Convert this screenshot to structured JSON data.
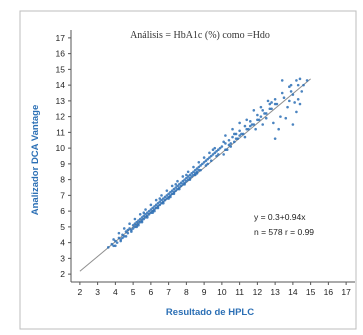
{
  "chart_data": {
    "type": "scatter",
    "title": "Análisis = HbA1c (%) como =Hdo",
    "xlabel": "Resultado de HPLC",
    "ylabel": "Analizador DCA Vantage",
    "xlim": [
      1.5,
      17.5
    ],
    "ylim": [
      1.5,
      17.5
    ],
    "x_ticks": [
      "2",
      "3",
      "4",
      "5",
      "6",
      "7",
      "8",
      "9",
      "10",
      "11",
      "12",
      "13",
      "14",
      "15",
      "16",
      "17"
    ],
    "y_ticks": [
      "2",
      "3",
      "4",
      "5",
      "6",
      "7",
      "8",
      "9",
      "10",
      "11",
      "12",
      "13",
      "14",
      "15",
      "16",
      "17"
    ],
    "grid": false,
    "point_color": "#2b6fb5",
    "regression": {
      "intercept": 0.3,
      "slope": 0.94,
      "x_range": [
        2,
        15
      ],
      "color": "#8f8f8f"
    },
    "annotation": {
      "equation": "y = 0.3+0.94x",
      "stats": "n = 578  r = 0.99"
    },
    "series": [
      {
        "points": [
          [
            3.6,
            3.7
          ],
          [
            3.8,
            3.9
          ],
          [
            3.9,
            3.8
          ],
          [
            4.0,
            4.1
          ],
          [
            4.1,
            4.0
          ],
          [
            4.2,
            4.3
          ],
          [
            4.3,
            4.2
          ],
          [
            4.4,
            4.5
          ],
          [
            4.5,
            4.4
          ],
          [
            4.6,
            4.7
          ],
          [
            4.7,
            4.6
          ],
          [
            4.8,
            4.9
          ],
          [
            4.9,
            4.8
          ],
          [
            5.0,
            5.1
          ],
          [
            5.0,
            4.9
          ],
          [
            5.1,
            5.2
          ],
          [
            5.1,
            5.0
          ],
          [
            5.2,
            5.3
          ],
          [
            5.2,
            5.1
          ],
          [
            5.3,
            5.4
          ],
          [
            5.3,
            5.2
          ],
          [
            5.4,
            5.5
          ],
          [
            5.4,
            5.3
          ],
          [
            5.5,
            5.6
          ],
          [
            5.5,
            5.4
          ],
          [
            5.6,
            5.7
          ],
          [
            5.6,
            5.5
          ],
          [
            5.7,
            5.8
          ],
          [
            5.7,
            5.6
          ],
          [
            5.8,
            5.9
          ],
          [
            5.8,
            5.7
          ],
          [
            5.9,
            6.0
          ],
          [
            5.9,
            5.8
          ],
          [
            6.0,
            6.1
          ],
          [
            6.0,
            5.9
          ],
          [
            6.1,
            6.2
          ],
          [
            6.1,
            6.0
          ],
          [
            6.2,
            6.3
          ],
          [
            6.2,
            6.1
          ],
          [
            6.3,
            6.4
          ],
          [
            6.3,
            6.2
          ],
          [
            6.4,
            6.5
          ],
          [
            6.4,
            6.3
          ],
          [
            6.5,
            6.6
          ],
          [
            6.5,
            6.4
          ],
          [
            6.6,
            6.7
          ],
          [
            6.6,
            6.5
          ],
          [
            6.7,
            6.8
          ],
          [
            6.7,
            6.6
          ],
          [
            6.8,
            6.9
          ],
          [
            6.8,
            6.7
          ],
          [
            6.9,
            7.0
          ],
          [
            6.9,
            6.8
          ],
          [
            7.0,
            7.1
          ],
          [
            7.0,
            6.9
          ],
          [
            7.1,
            7.2
          ],
          [
            7.1,
            7.0
          ],
          [
            7.2,
            7.3
          ],
          [
            7.2,
            7.1
          ],
          [
            7.3,
            7.4
          ],
          [
            7.3,
            7.2
          ],
          [
            7.4,
            7.5
          ],
          [
            7.4,
            7.3
          ],
          [
            7.5,
            7.6
          ],
          [
            7.5,
            7.4
          ],
          [
            7.6,
            7.7
          ],
          [
            7.6,
            7.5
          ],
          [
            7.7,
            7.8
          ],
          [
            7.7,
            7.6
          ],
          [
            7.8,
            7.9
          ],
          [
            7.8,
            7.7
          ],
          [
            7.9,
            8.0
          ],
          [
            7.9,
            7.8
          ],
          [
            8.0,
            8.1
          ],
          [
            8.0,
            7.9
          ],
          [
            8.1,
            8.2
          ],
          [
            8.1,
            8.0
          ],
          [
            8.2,
            8.3
          ],
          [
            8.2,
            8.1
          ],
          [
            8.3,
            8.4
          ],
          [
            8.3,
            8.2
          ],
          [
            8.4,
            8.5
          ],
          [
            8.4,
            8.3
          ],
          [
            8.5,
            8.6
          ],
          [
            8.5,
            8.4
          ],
          [
            8.6,
            8.7
          ],
          [
            8.6,
            8.5
          ],
          [
            8.7,
            8.8
          ],
          [
            8.7,
            8.6
          ],
          [
            8.8,
            8.9
          ],
          [
            8.9,
            9.0
          ],
          [
            9.0,
            9.1
          ],
          [
            9.1,
            9.2
          ],
          [
            9.2,
            9.3
          ],
          [
            9.3,
            9.4
          ],
          [
            9.4,
            9.5
          ],
          [
            9.5,
            9.6
          ],
          [
            9.6,
            9.7
          ],
          [
            9.7,
            9.8
          ],
          [
            9.8,
            9.9
          ],
          [
            9.9,
            10.0
          ],
          [
            10.0,
            10.1
          ],
          [
            10.2,
            10.3
          ],
          [
            10.4,
            10.5
          ],
          [
            10.6,
            10.7
          ],
          [
            10.8,
            10.9
          ],
          [
            11.0,
            11.1
          ],
          [
            11.3,
            11.4
          ],
          [
            11.6,
            11.7
          ],
          [
            12.0,
            12.1
          ],
          [
            12.3,
            12.4
          ],
          [
            12.7,
            12.8
          ],
          [
            13.0,
            13.1
          ],
          [
            13.4,
            13.5
          ],
          [
            13.8,
            13.9
          ],
          [
            14.2,
            14.3
          ],
          [
            3.9,
            4.2
          ],
          [
            4.2,
            4.6
          ],
          [
            4.5,
            4.9
          ],
          [
            4.8,
            5.2
          ],
          [
            5.1,
            5.5
          ],
          [
            5.4,
            5.8
          ],
          [
            5.7,
            6.1
          ],
          [
            6.0,
            6.4
          ],
          [
            6.3,
            6.7
          ],
          [
            6.6,
            7.0
          ],
          [
            6.9,
            7.3
          ],
          [
            7.2,
            7.6
          ],
          [
            7.5,
            7.9
          ],
          [
            7.8,
            8.2
          ],
          [
            8.1,
            8.5
          ],
          [
            8.4,
            8.8
          ],
          [
            8.7,
            9.1
          ],
          [
            9.0,
            9.4
          ],
          [
            9.3,
            9.7
          ],
          [
            9.6,
            10.0
          ],
          [
            4.0,
            3.8
          ],
          [
            4.3,
            4.1
          ],
          [
            4.6,
            4.4
          ],
          [
            4.9,
            4.7
          ],
          [
            5.2,
            5.0
          ],
          [
            5.5,
            5.3
          ],
          [
            5.8,
            5.6
          ],
          [
            6.1,
            5.9
          ],
          [
            6.4,
            6.2
          ],
          [
            6.7,
            6.5
          ],
          [
            7.0,
            6.8
          ],
          [
            7.3,
            7.1
          ],
          [
            7.6,
            7.4
          ],
          [
            7.9,
            7.7
          ],
          [
            8.2,
            8.0
          ],
          [
            8.5,
            8.3
          ],
          [
            8.8,
            8.6
          ],
          [
            9.1,
            8.9
          ],
          [
            9.4,
            9.2
          ],
          [
            9.7,
            9.5
          ],
          [
            10.1,
            9.6
          ],
          [
            10.3,
            9.9
          ],
          [
            10.5,
            10.1
          ],
          [
            10.7,
            10.4
          ],
          [
            10.9,
            10.6
          ],
          [
            11.2,
            10.9
          ],
          [
            11.5,
            11.2
          ],
          [
            11.8,
            11.5
          ],
          [
            12.1,
            11.8
          ],
          [
            12.5,
            12.2
          ],
          [
            12.8,
            12.5
          ],
          [
            13.1,
            12.8
          ],
          [
            13.5,
            13.2
          ],
          [
            13.9,
            13.6
          ],
          [
            14.3,
            14.0
          ],
          [
            10.2,
            9.9
          ],
          [
            10.5,
            10.3
          ],
          [
            10.8,
            10.6
          ],
          [
            11.1,
            10.9
          ],
          [
            11.4,
            11.2
          ],
          [
            11.7,
            11.5
          ],
          [
            12.0,
            11.8
          ],
          [
            12.4,
            12.2
          ],
          [
            12.7,
            12.5
          ],
          [
            13.0,
            12.8
          ],
          [
            13.0,
            10.6
          ],
          [
            13.2,
            11.2
          ],
          [
            13.6,
            11.9
          ],
          [
            14.0,
            11.5
          ],
          [
            14.2,
            12.3
          ],
          [
            14.4,
            12.8
          ],
          [
            13.8,
            13.0
          ],
          [
            14.0,
            13.4
          ],
          [
            14.6,
            14.0
          ],
          [
            14.8,
            14.3
          ],
          [
            14.4,
            14.4
          ],
          [
            13.4,
            14.3
          ],
          [
            13.9,
            14.0
          ],
          [
            12.6,
            13.0
          ],
          [
            12.2,
            12.6
          ],
          [
            11.8,
            12.4
          ],
          [
            11.4,
            11.8
          ],
          [
            11.0,
            11.6
          ],
          [
            10.6,
            11.2
          ],
          [
            10.2,
            10.8
          ],
          [
            14.5,
            13.6
          ],
          [
            14.1,
            12.9
          ],
          [
            13.3,
            12.0
          ],
          [
            12.9,
            11.6
          ],
          [
            12.5,
            11.9
          ],
          [
            13.7,
            12.6
          ],
          [
            14.3,
            13.1
          ],
          [
            11.9,
            11.2
          ],
          [
            12.3,
            11.5
          ],
          [
            11.3,
            10.7
          ],
          [
            4.4,
            4.3
          ],
          [
            4.7,
            4.8
          ],
          [
            5.3,
            5.1
          ],
          [
            5.6,
            5.9
          ],
          [
            6.2,
            6.0
          ],
          [
            6.5,
            6.8
          ],
          [
            7.1,
            6.9
          ],
          [
            7.4,
            7.7
          ],
          [
            8.0,
            8.3
          ],
          [
            8.6,
            8.4
          ],
          [
            9.2,
            9.0
          ],
          [
            9.5,
            9.9
          ],
          [
            9.8,
            9.6
          ],
          [
            10.1,
            10.4
          ],
          [
            10.4,
            10.2
          ],
          [
            10.7,
            10.9
          ],
          [
            11.0,
            10.8
          ],
          [
            11.6,
            11.4
          ],
          [
            12.2,
            12.0
          ],
          [
            12.8,
            12.9
          ]
        ]
      }
    ]
  }
}
